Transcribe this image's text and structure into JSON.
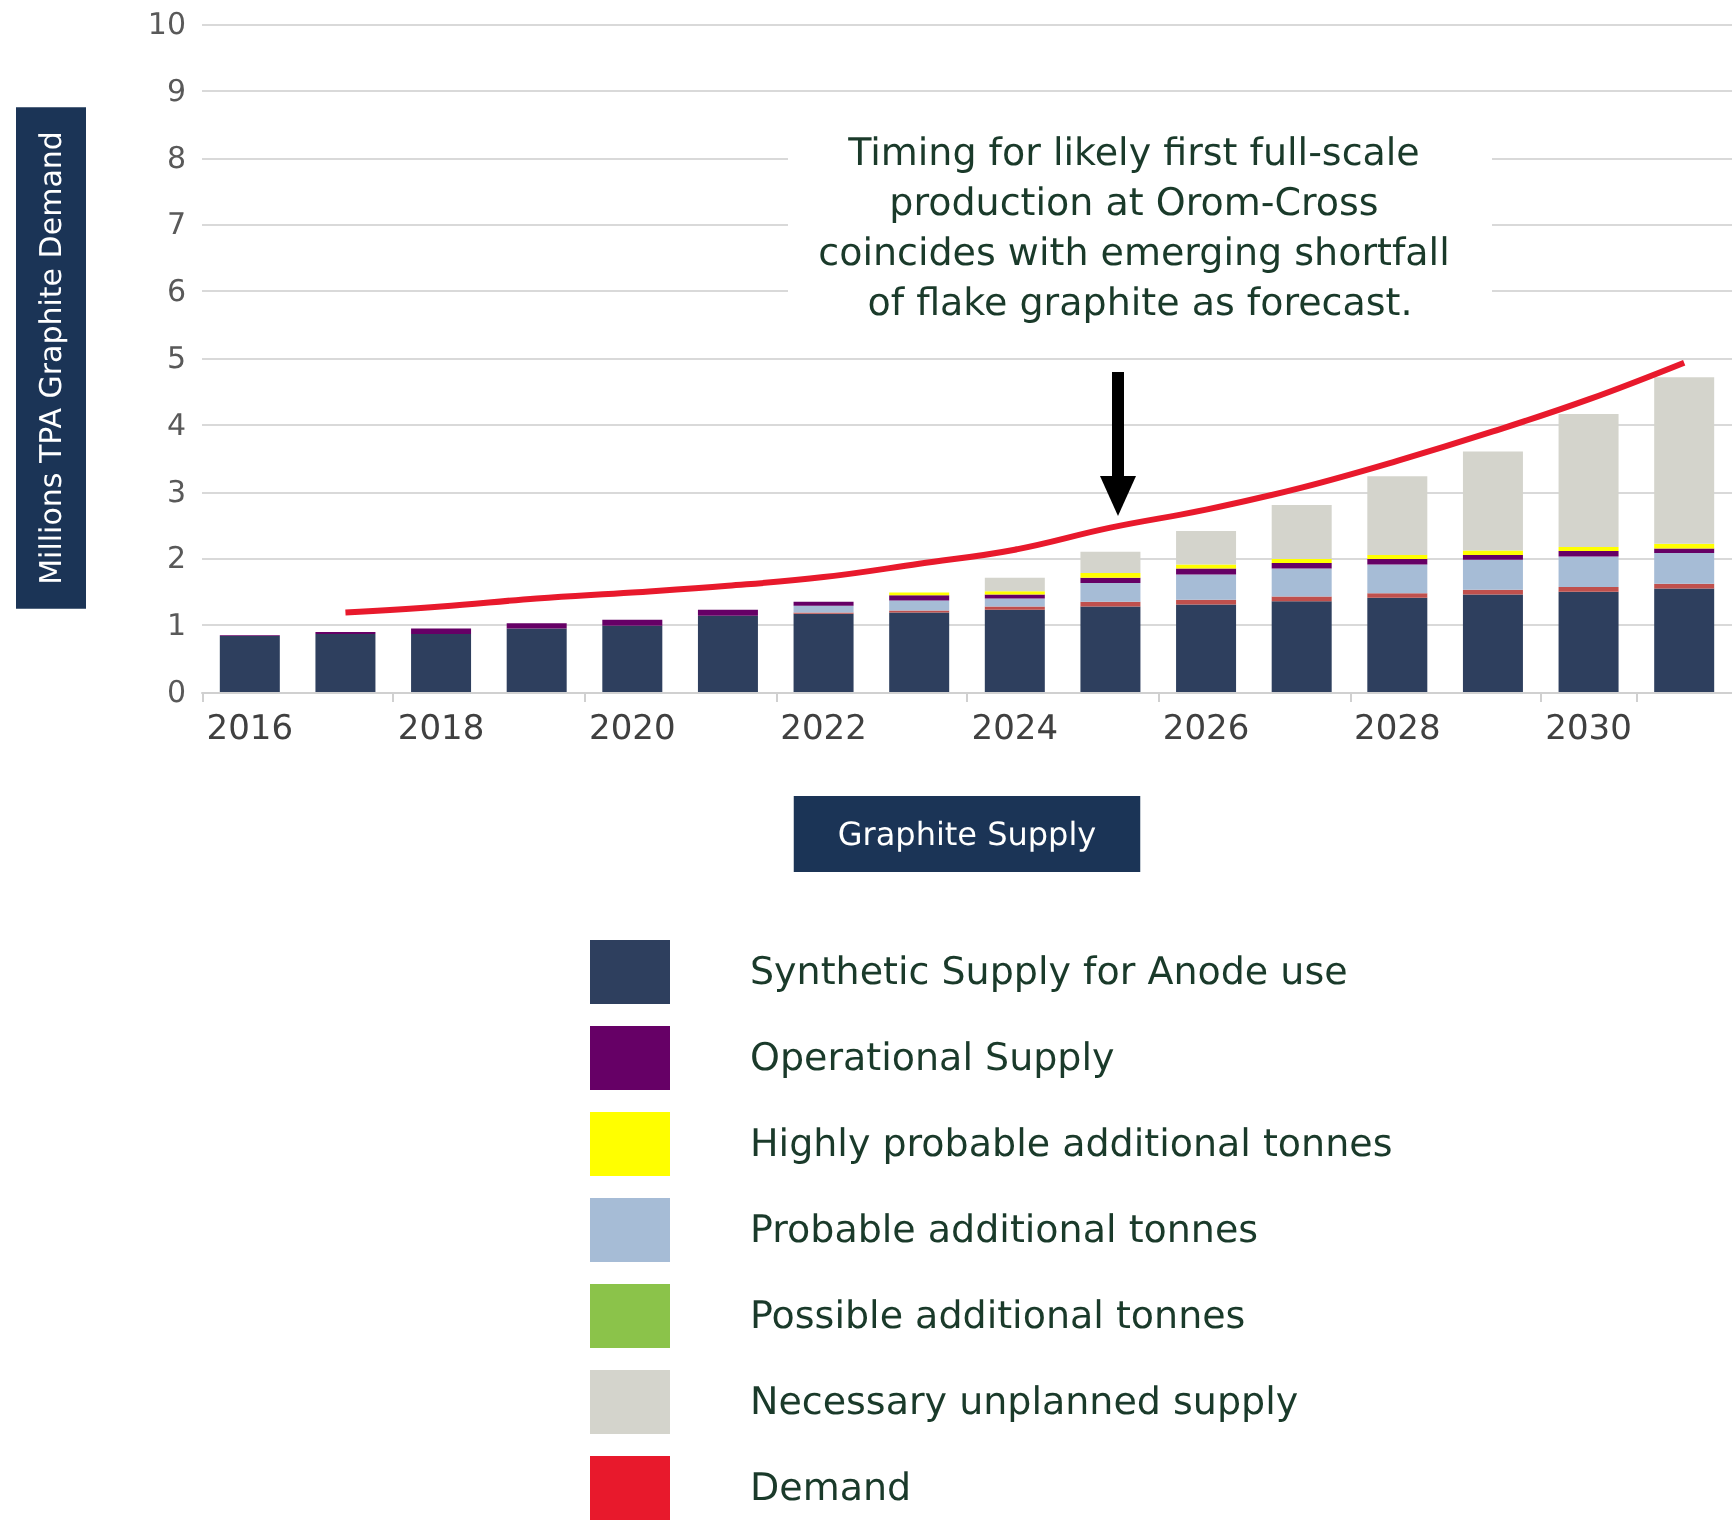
{
  "chart_data": {
    "type": "bar",
    "stacked": true,
    "xlabel": "Graphite Supply",
    "ylabel": "Millions TPA Graphite Demand",
    "categories": [
      "2016",
      null,
      "2018",
      null,
      "2020",
      null,
      "2022",
      null,
      "2024",
      null,
      "2026",
      null,
      "2028",
      null,
      "2030",
      null
    ],
    "series": [
      {
        "name": "Synthetic Supply for Anode use",
        "color": "#2e3f5e",
        "values": [
          0.84,
          0.87,
          0.87,
          0.95,
          0.99,
          1.14,
          1.17,
          1.19,
          1.23,
          1.28,
          1.31,
          1.36,
          1.41,
          1.46,
          1.5,
          1.55
        ]
      },
      {
        "color": "#c0504d",
        "values": [
          0,
          0,
          0,
          0,
          0,
          0,
          0.02,
          0.03,
          0.05,
          0.07,
          0.07,
          0.07,
          0.07,
          0.07,
          0.07,
          0.07
        ]
      },
      {
        "name": "Possible additional tonnes",
        "color": "#8bc34a",
        "values": [
          0,
          0,
          0,
          0,
          0,
          0,
          0,
          0,
          0,
          0,
          0,
          0,
          0,
          0,
          0,
          0
        ]
      },
      {
        "name": "Probable additional tonnes",
        "color": "#a6bcd6",
        "values": [
          0,
          0,
          0,
          0,
          0,
          0,
          0.1,
          0.15,
          0.12,
          0.28,
          0.38,
          0.42,
          0.43,
          0.45,
          0.46,
          0.46
        ]
      },
      {
        "name": "Operational Supply",
        "color": "#660066",
        "values": [
          0.01,
          0.03,
          0.08,
          0.08,
          0.09,
          0.09,
          0.06,
          0.08,
          0.06,
          0.08,
          0.09,
          0.08,
          0.08,
          0.07,
          0.08,
          0.07
        ]
      },
      {
        "name": "Highly probable additional tonnes",
        "color": "#ffff00",
        "values": [
          0,
          0,
          0,
          0,
          0,
          0,
          0,
          0.04,
          0.05,
          0.07,
          0.06,
          0.06,
          0.06,
          0.07,
          0.06,
          0.07
        ]
      },
      {
        "name": "Necessary unplanned supply",
        "color": "#d4d4cc",
        "values": [
          0,
          0,
          0,
          0,
          0,
          0,
          0,
          0,
          0.2,
          0.32,
          0.5,
          0.81,
          1.18,
          1.48,
          1.99,
          2.49
        ]
      },
      {
        "name": "Demand",
        "type": "line",
        "color": "#e8192c",
        "values": [
          null,
          1.19,
          1.28,
          1.4,
          1.49,
          1.59,
          1.72,
          1.92,
          2.13,
          2.46,
          2.73,
          3.06,
          3.46,
          3.9,
          4.38,
          4.93
        ]
      }
    ],
    "ylim": [
      0,
      10
    ],
    "yticks": [
      0,
      1,
      2,
      3,
      4,
      5,
      6,
      7,
      8,
      9,
      10
    ],
    "grid": "y",
    "legend": "bottom",
    "marker": "none",
    "annotations": [
      "Timing for likely first full-scale production at Orom-Cross coincides with emerging shortfall of flake graphite as forecast."
    ]
  }
}
